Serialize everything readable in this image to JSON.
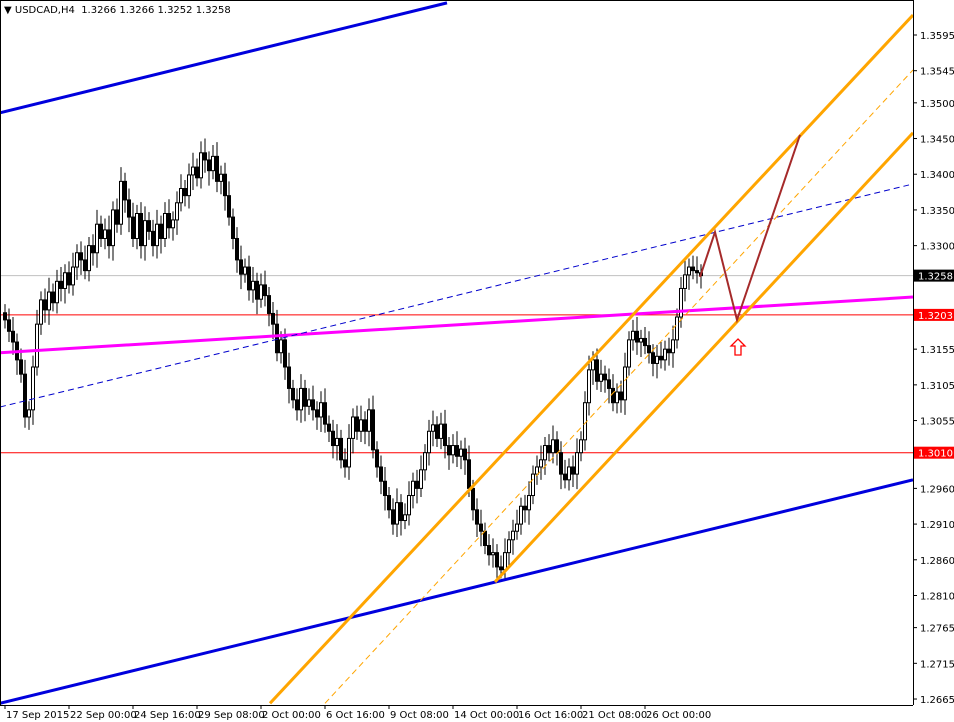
{
  "header": {
    "symbol": "USDCAD,H4",
    "ohlc": "1.3266 1.3266 1.3252 1.3258"
  },
  "chart_data": {
    "type": "candlestick",
    "symbol": "USDCAD",
    "timeframe": "H4",
    "ylim": [
      1.2645,
      1.364
    ],
    "y_ticks": [
      "1.3595",
      "1.3545",
      "1.3500",
      "1.3450",
      "1.3400",
      "1.3350",
      "1.3300",
      "1.3155",
      "1.3105",
      "1.3055",
      "1.2960",
      "1.2910",
      "1.2860",
      "1.2810",
      "1.2765",
      "1.2715",
      "1.2665"
    ],
    "x_ticks": [
      {
        "bar": 0,
        "label": "17 Sep 2015"
      },
      {
        "bar": 16,
        "label": "22 Sep 00:00"
      },
      {
        "bar": 32,
        "label": "24 Sep 16:00"
      },
      {
        "bar": 48,
        "label": "29 Sep 08:00"
      },
      {
        "bar": 64,
        "label": "2 Oct 00:00"
      },
      {
        "bar": 80,
        "label": "6 Oct 16:00"
      },
      {
        "bar": 96,
        "label": "9 Oct 08:00"
      },
      {
        "bar": 112,
        "label": "14 Oct 00:00"
      },
      {
        "bar": 128,
        "label": "16 Oct 16:00"
      },
      {
        "bar": 144,
        "label": "21 Oct 08:00"
      },
      {
        "bar": 160,
        "label": "26 Oct 00:00"
      }
    ],
    "closes": [
      1.3196,
      1.318,
      1.3165,
      1.314,
      1.312,
      1.306,
      1.307,
      1.313,
      1.319,
      1.3224,
      1.321,
      1.3235,
      1.322,
      1.325,
      1.324,
      1.3262,
      1.3245,
      1.327,
      1.329,
      1.328,
      1.3265,
      1.33,
      1.329,
      1.333,
      1.331,
      1.3322,
      1.33,
      1.335,
      1.333,
      1.339,
      1.3364,
      1.334,
      1.331,
      1.3345,
      1.33,
      1.3335,
      1.332,
      1.33,
      1.333,
      1.331,
      1.3345,
      1.3325,
      1.3336,
      1.336,
      1.338,
      1.337,
      1.3399,
      1.341,
      1.3395,
      1.343,
      1.342,
      1.3405,
      1.3425,
      1.339,
      1.34,
      1.337,
      1.334,
      1.331,
      1.328,
      1.326,
      1.327,
      1.3238,
      1.325,
      1.3225,
      1.3245,
      1.323,
      1.3205,
      1.319,
      1.315,
      1.3168,
      1.313,
      1.31,
      1.3084,
      1.307,
      1.31,
      1.3075,
      1.3084,
      1.307,
      1.306,
      1.308,
      1.305,
      1.304,
      1.302,
      1.303,
      1.3,
      1.299,
      1.303,
      1.306,
      1.304,
      1.3056,
      1.304,
      1.307,
      1.3014,
      1.299,
      1.297,
      1.295,
      1.293,
      1.291,
      1.294,
      1.2915,
      1.2923,
      1.295,
      1.297,
      1.296,
      1.2986,
      1.301,
      1.304,
      1.3049,
      1.303,
      1.305,
      1.302,
      1.3007,
      1.302,
      1.3005,
      1.3015,
      1.3,
      1.296,
      1.293,
      1.291,
      1.29,
      1.288,
      1.2867,
      1.287,
      1.285,
      1.2846,
      1.287,
      1.2888,
      1.29,
      1.291,
      1.2935,
      1.293,
      1.295,
      1.298,
      1.299,
      1.3,
      1.302,
      1.301,
      1.3028,
      1.301,
      1.298,
      1.2972,
      1.299,
      1.298,
      1.301,
      1.3028,
      1.308,
      1.3126,
      1.314,
      1.311,
      1.312,
      1.3112,
      1.31,
      1.308,
      1.3095,
      1.3084,
      1.313,
      1.3168,
      1.318,
      1.3165,
      1.317,
      1.316,
      1.315,
      1.3135,
      1.3145,
      1.314,
      1.3155,
      1.315,
      1.3168,
      1.32,
      1.324,
      1.3259,
      1.327,
      1.3265,
      1.3262,
      1.3258
    ],
    "lines": [
      {
        "kind": "trendline",
        "color": "#0000dd",
        "points": [
          [
            -1.25,
            1.3486
          ],
          [
            110.5,
            1.364
          ]
        ]
      },
      {
        "kind": "trendline",
        "color": "#0000dd",
        "points": [
          [
            -1.25,
            1.2659
          ],
          [
            227,
            1.2972
          ]
        ]
      },
      {
        "kind": "trendline",
        "color": "#ff00ff",
        "points": [
          [
            -1.25,
            1.315
          ],
          [
            227,
            1.3228
          ]
        ]
      },
      {
        "kind": "dashed",
        "color": "#0000cc",
        "points": [
          [
            -1.25,
            1.3074
          ],
          [
            226,
            1.3385
          ]
        ]
      },
      {
        "kind": "channel",
        "color": "#ffa500",
        "points": [
          [
            66.25,
            1.2659
          ],
          [
            227,
            1.3623
          ]
        ]
      },
      {
        "kind": "channel",
        "color": "#ffa500",
        "points": [
          [
            122.5,
            1.2829
          ],
          [
            227,
            1.3458
          ]
        ]
      },
      {
        "kind": "dashed",
        "color": "#ffa500",
        "points": [
          [
            80,
            1.2659
          ],
          [
            227,
            1.3546
          ]
        ]
      },
      {
        "kind": "zigzag",
        "color": "#a52a2a",
        "points": [
          [
            173.75,
            1.3256
          ],
          [
            177.5,
            1.3319
          ],
          [
            183,
            1.3196
          ],
          [
            198.75,
            1.3455
          ]
        ]
      }
    ],
    "hlines": [
      {
        "price": 1.3203,
        "label": "1.3203",
        "color": "#ff0000"
      },
      {
        "price": 1.301,
        "label": "1.3010",
        "color": "#ff0000"
      },
      {
        "price": 1.3258,
        "label": "1.3258",
        "color": "#c0c0c0",
        "label_bg": "#000000"
      }
    ],
    "arrow": {
      "bar": 183.25,
      "price": 1.3158,
      "direction": "up",
      "color": "#ff0000"
    }
  }
}
